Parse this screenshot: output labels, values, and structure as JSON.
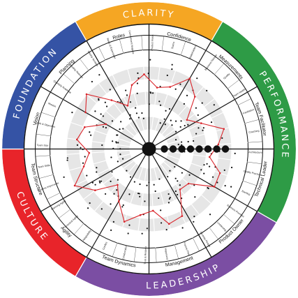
{
  "wheel": {
    "quadrants": [
      {
        "label": "CLARITY",
        "color": "#f5a623"
      },
      {
        "label": "PERFORMANCE",
        "color": "#2e9b46"
      },
      {
        "label": "LEADERSHIP",
        "color": "#7b4ea3"
      },
      {
        "label": "CULTURE",
        "color": "#e8242a"
      },
      {
        "label": "FOUNDATION",
        "color": "#3553a5"
      }
    ],
    "categories": [
      {
        "label": "Planning"
      },
      {
        "label": "Roles"
      },
      {
        "label": "Confidence"
      },
      {
        "label": "Measurements"
      },
      {
        "label": "Team Facilitator"
      },
      {
        "label": "Technical Leader"
      },
      {
        "label": "Product Owner"
      },
      {
        "label": "Management"
      },
      {
        "label": "Team Dynamics"
      },
      {
        "label": "Agility"
      },
      {
        "label": "Team Structure"
      },
      {
        "label": "Vision"
      }
    ],
    "factors": [
      "Quarterly Roadmap",
      "Monthly Release",
      "Weekly Iteration",
      "Roles & Expectations",
      "Commitment Negotiation",
      "Product Vision",
      "Teams",
      "Stakeholders",
      "Business Results",
      "Quality",
      "Team Health",
      "Facilitation",
      "Coaching",
      "Architecture",
      "Quality Practices",
      "Backlog",
      "Business Priorities",
      "Leadership",
      "Develop People",
      "Process Flow",
      "Happiness",
      "Trust & Respect",
      "Collaboration",
      "Conflict",
      "Adaptability",
      "Technical Agility",
      "Planning Agility",
      "Process Improvement",
      "Team Skills",
      "Team Size",
      "Goals & Objectives",
      "Mission"
    ],
    "center": {
      "color": "#111111"
    },
    "profile_color": "#d9242a"
  }
}
